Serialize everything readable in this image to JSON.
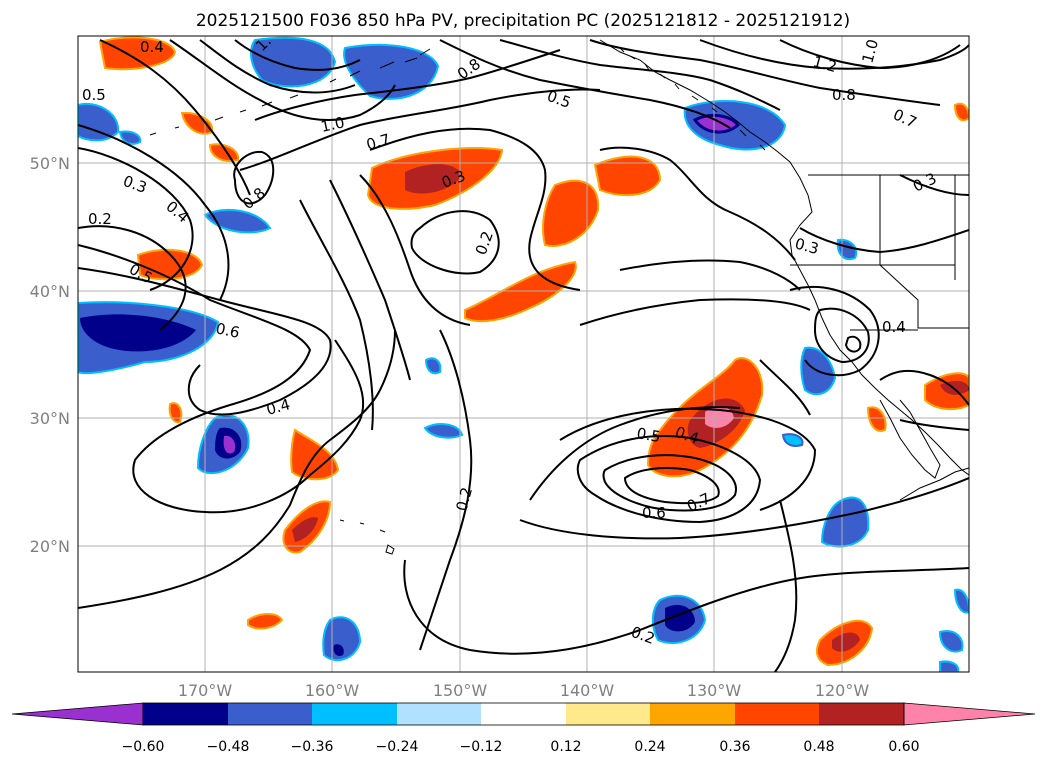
{
  "title": "2025121500 F036 850 hPa PV, precipitation PC (2025121812 - 2025121912)",
  "map": {
    "lat_labels": [
      "50°N",
      "40°N",
      "30°N",
      "20°N"
    ],
    "lon_labels": [
      "170°W",
      "160°W",
      "150°W",
      "140°W",
      "130°W",
      "120°W"
    ],
    "land_color": "#ffffff",
    "contour_color": "#000000",
    "gridline_color": "#b0b0b0"
  },
  "contour_labels": [
    "0.4",
    "1.",
    "0.5",
    "0.8",
    "1.0",
    "0.5",
    "0.7",
    "0.3",
    "0.4",
    "0.8",
    "0.2",
    "0.3",
    "0.5",
    "0.2",
    "0.6",
    "0.4",
    "1.2",
    "1.0",
    "0.8",
    "0.7",
    "0.3",
    "0.3",
    "0.4",
    "0.5",
    "0.4",
    "0.7",
    "0.6",
    "0.2",
    "0.2"
  ],
  "colorbar": {
    "ticks": [
      "−0.60",
      "−0.48",
      "−0.36",
      "−0.24",
      "−0.12",
      "0.12",
      "0.24",
      "0.36",
      "0.48",
      "0.60"
    ],
    "colors": [
      "#9b30d0",
      "#00008b",
      "#3a5fcd",
      "#00bfff",
      "#b0e2ff",
      "#ffffff",
      "#ffe98a",
      "#ffa500",
      "#ff4500",
      "#b22222",
      "#ff82ab"
    ]
  }
}
